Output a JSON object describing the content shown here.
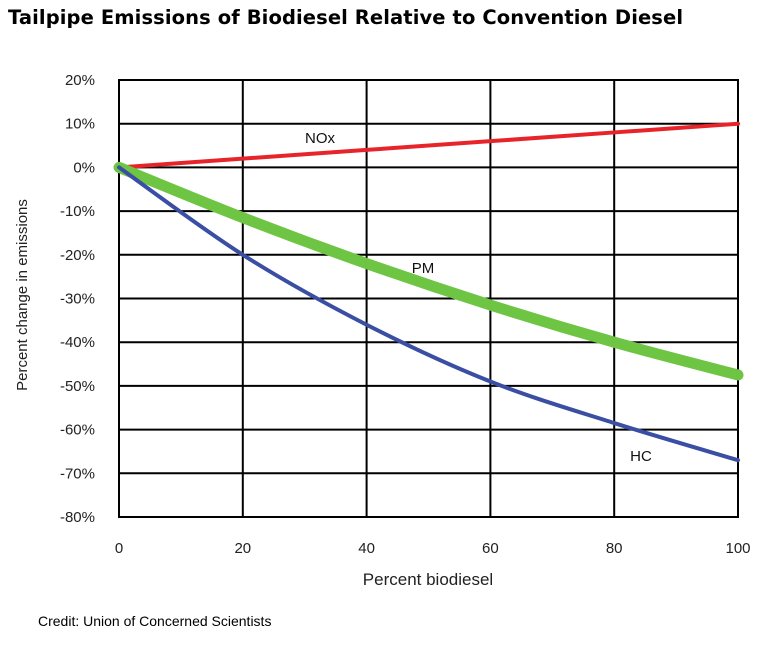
{
  "title": "Tailpipe Emissions of Biodiesel Relative to Convention Diesel",
  "credit": "Credit: Union of Concerned Scientists",
  "chart_data": {
    "type": "line",
    "title": "Tailpipe Emissions of Biodiesel Relative to Convention Diesel",
    "xlabel": "Percent biodiesel",
    "ylabel": "Percent change in emissions",
    "xlim": [
      0,
      100
    ],
    "ylim": [
      -80,
      20
    ],
    "x_ticks": [
      "0",
      "20",
      "40",
      "60",
      "80",
      "100"
    ],
    "y_ticks": [
      "20%",
      "10%",
      "0%",
      "-10%",
      "-20%",
      "-30%",
      "-40%",
      "-50%",
      "-60%",
      "-70%",
      "-80%"
    ],
    "grid": true,
    "legend": "none",
    "series": [
      {
        "name": "NOx",
        "color": "#e8242b",
        "x": [
          0,
          20,
          40,
          60,
          80,
          100
        ],
        "y": [
          0,
          2,
          4,
          6,
          8,
          10
        ]
      },
      {
        "name": "PM",
        "color": "#6ec544",
        "x": [
          0,
          20,
          40,
          60,
          80,
          100
        ],
        "y": [
          0,
          -11.5,
          -22,
          -31.5,
          -40,
          -47.5
        ]
      },
      {
        "name": "HC",
        "color": "#3a4ea3",
        "x": [
          0,
          20,
          40,
          60,
          80,
          100
        ],
        "y": [
          0,
          -20,
          -36,
          -49,
          -58.5,
          -67
        ]
      }
    ]
  }
}
